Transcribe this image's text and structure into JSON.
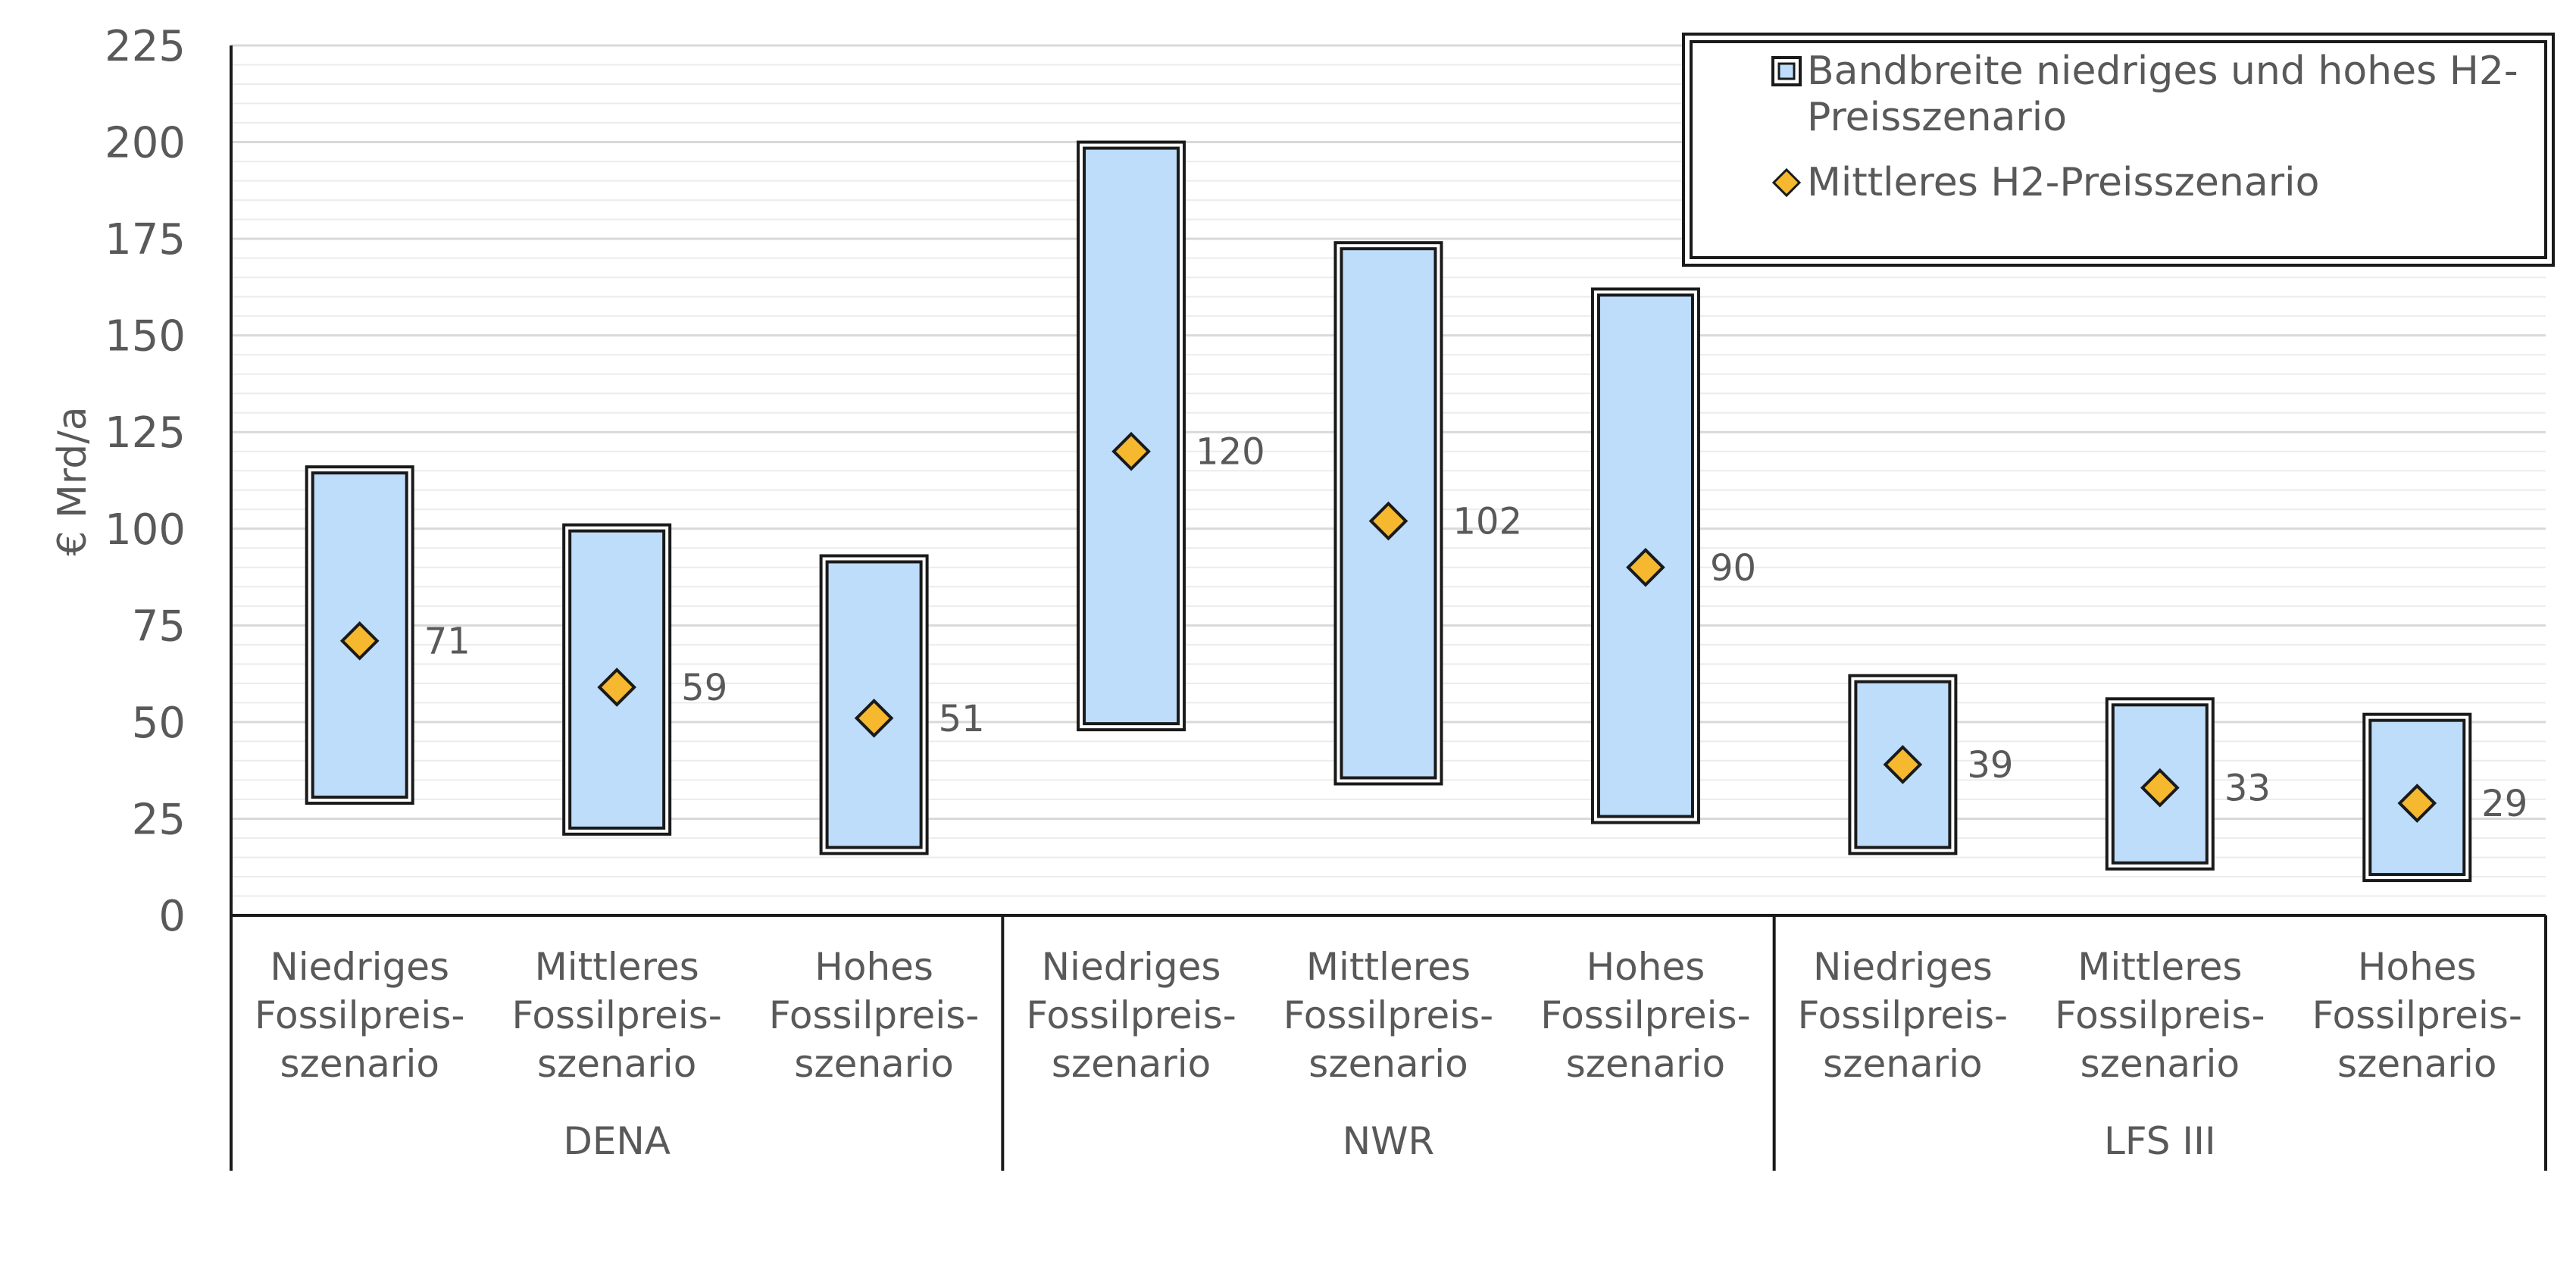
{
  "chart_data": {
    "type": "range-bar-with-markers",
    "ylabel": "€ Mrd/a",
    "ylim": [
      0,
      225
    ],
    "y_ticks": [
      "0",
      "25",
      "50",
      "75",
      "100",
      "125",
      "150",
      "175",
      "200",
      "225"
    ],
    "grid": true,
    "legend_position": "top-right",
    "legend": [
      {
        "label_line1": "Bandbreite niedriges und hohes H2-",
        "label_line2": "Preisszenario",
        "icon": "range-box-icon"
      },
      {
        "label_line1": "Mittleres H2-Preisszenario",
        "icon": "diamond-icon"
      }
    ],
    "groups": [
      {
        "name": "DENA",
        "categories": [
          {
            "line1": "Niedriges",
            "line2": "Fossilpreis-",
            "line3": "szenario",
            "low": 29,
            "high": 116,
            "mid": 71,
            "label": "71"
          },
          {
            "line1": "Mittleres",
            "line2": "Fossilpreis-",
            "line3": "szenario",
            "low": 21,
            "high": 101,
            "mid": 59,
            "label": "59"
          },
          {
            "line1": "Hohes",
            "line2": "Fossilpreis-",
            "line3": "szenario",
            "low": 16,
            "high": 93,
            "mid": 51,
            "label": "51"
          }
        ]
      },
      {
        "name": "NWR",
        "categories": [
          {
            "line1": "Niedriges",
            "line2": "Fossilpreis-",
            "line3": "szenario",
            "low": 48,
            "high": 200,
            "mid": 120,
            "label": "120"
          },
          {
            "line1": "Mittleres",
            "line2": "Fossilpreis-",
            "line3": "szenario",
            "low": 34,
            "high": 174,
            "mid": 102,
            "label": "102"
          },
          {
            "line1": "Hohes",
            "line2": "Fossilpreis-",
            "line3": "szenario",
            "low": 24,
            "high": 162,
            "mid": 90,
            "label": "90"
          }
        ]
      },
      {
        "name": "LFS III",
        "categories": [
          {
            "line1": "Niedriges",
            "line2": "Fossilpreis-",
            "line3": "szenario",
            "low": 16,
            "high": 62,
            "mid": 39,
            "label": "39"
          },
          {
            "line1": "Mittleres",
            "line2": "Fossilpreis-",
            "line3": "szenario",
            "low": 12,
            "high": 56,
            "mid": 33,
            "label": "33"
          },
          {
            "line1": "Hohes",
            "line2": "Fossilpreis-",
            "line3": "szenario",
            "low": 9,
            "high": 52,
            "mid": 29,
            "label": "29"
          }
        ]
      }
    ],
    "colors": {
      "range_fill": "#BDDDFB",
      "range_stroke": "#1a1a1a",
      "marker_fill": "#F5B82E",
      "text": "#595959",
      "axis": "#1a1a1a",
      "grid_major": "#d9d9d9",
      "grid_minor": "#ececec"
    }
  }
}
